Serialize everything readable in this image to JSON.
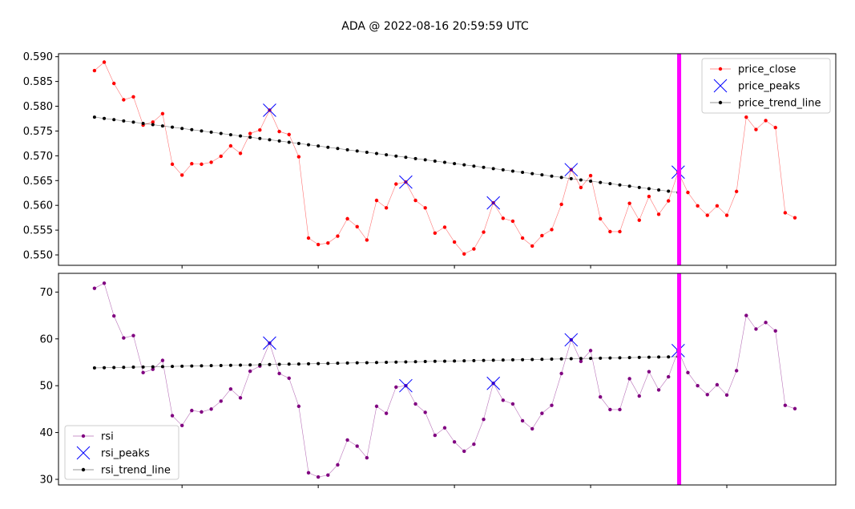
{
  "figure": {
    "title": "ADA @ 2022-08-16 20:59:59 UTC"
  },
  "colors": {
    "price_close": "#ff0000",
    "price_peaks": "#0000ff",
    "trend_line": "#000000",
    "rsi": "#800080",
    "rsi_peaks": "#0000ff",
    "vline": "#ff00ff"
  },
  "chart_data": [
    {
      "type": "line",
      "name": "price-panel",
      "x": [
        0,
        1,
        2,
        3,
        4,
        5,
        6,
        7,
        8,
        9,
        10,
        11,
        12,
        13,
        14,
        15,
        16,
        17,
        18,
        19,
        20,
        21,
        22,
        23,
        24,
        25,
        26,
        27,
        28,
        29,
        30,
        31,
        32,
        33,
        34,
        35,
        36,
        37,
        38,
        39,
        40,
        41,
        42,
        43,
        44,
        45,
        46,
        47,
        48,
        49,
        50,
        51,
        52,
        53,
        54,
        55,
        56,
        57,
        58,
        59,
        60,
        61,
        62,
        63,
        64,
        65,
        66,
        67,
        68,
        69,
        70,
        71,
        72
      ],
      "xlim": [
        -3.7,
        76.2
      ],
      "ylim": [
        0.5479,
        0.5906
      ],
      "yticks": [
        "0.550",
        "0.555",
        "0.560",
        "0.565",
        "0.570",
        "0.575",
        "0.580",
        "0.585",
        "0.590"
      ],
      "ytick_values": [
        0.55,
        0.555,
        0.56,
        0.565,
        0.57,
        0.575,
        0.58,
        0.585,
        0.59
      ],
      "xticks": [
        9,
        23,
        37,
        51,
        65
      ],
      "legend": {
        "placement": "top-right",
        "entries": [
          "price_close",
          "price_peaks",
          "price_trend_line"
        ]
      },
      "series": [
        {
          "name": "price_close",
          "style": "line-dots",
          "values": [
            0.5872,
            0.5889,
            0.5846,
            0.5813,
            0.5819,
            0.5762,
            0.5768,
            0.5785,
            0.5683,
            0.5661,
            0.5684,
            0.5683,
            0.5687,
            0.5699,
            0.572,
            0.5705,
            0.5745,
            0.5752,
            0.5792,
            0.5749,
            0.5743,
            0.5698,
            0.5534,
            0.5521,
            0.5524,
            0.5538,
            0.5573,
            0.5557,
            0.553,
            0.561,
            0.5595,
            0.5643,
            0.5647,
            0.561,
            0.5595,
            0.5544,
            0.5556,
            0.5526,
            0.5502,
            0.5512,
            0.5546,
            0.5605,
            0.5574,
            0.5568,
            0.5534,
            0.5518,
            0.5539,
            0.5551,
            0.5602,
            0.5672,
            0.5636,
            0.566,
            0.5573,
            0.5547,
            0.5547,
            0.5604,
            0.557,
            0.5618,
            0.5582,
            0.5609,
            0.5667,
            0.5626,
            0.5599,
            0.558,
            0.5599,
            0.558,
            0.5628,
            0.5778,
            0.5753,
            0.5771,
            0.5757,
            0.5585,
            0.5575
          ]
        },
        {
          "name": "price_peaks",
          "style": "x-markers",
          "points": [
            [
              18,
              0.5792
            ],
            [
              32,
              0.5647
            ],
            [
              41,
              0.5605
            ],
            [
              49,
              0.5672
            ],
            [
              60,
              0.5667
            ]
          ]
        },
        {
          "name": "price_trend_line",
          "style": "line-dots",
          "line": {
            "x_start": 0,
            "x_end": 60,
            "y_start": 0.5778,
            "y_end": 0.5626
          }
        }
      ],
      "vline_x": 60.1
    },
    {
      "type": "line",
      "name": "rsi-panel",
      "x": [
        0,
        1,
        2,
        3,
        4,
        5,
        6,
        7,
        8,
        9,
        10,
        11,
        12,
        13,
        14,
        15,
        16,
        17,
        18,
        19,
        20,
        21,
        22,
        23,
        24,
        25,
        26,
        27,
        28,
        29,
        30,
        31,
        32,
        33,
        34,
        35,
        36,
        37,
        38,
        39,
        40,
        41,
        42,
        43,
        44,
        45,
        46,
        47,
        48,
        49,
        50,
        51,
        52,
        53,
        54,
        55,
        56,
        57,
        58,
        59,
        60,
        61,
        62,
        63,
        64,
        65,
        66,
        67,
        68,
        69,
        70,
        71,
        72
      ],
      "xlim": [
        -3.7,
        76.2
      ],
      "ylim": [
        28.8,
        74.0
      ],
      "yticks": [
        "30",
        "40",
        "50",
        "60",
        "70"
      ],
      "ytick_values": [
        30,
        40,
        50,
        60,
        70
      ],
      "xticks": [
        9,
        23,
        37,
        51,
        65
      ],
      "legend": {
        "placement": "bottom-left",
        "entries": [
          "rsi",
          "rsi_peaks",
          "rsi_trend_line"
        ]
      },
      "series": [
        {
          "name": "rsi",
          "style": "line-dots",
          "values": [
            70.8,
            71.9,
            64.9,
            60.2,
            60.7,
            52.8,
            53.5,
            55.4,
            43.6,
            41.5,
            44.7,
            44.4,
            45.0,
            46.7,
            49.3,
            47.4,
            53.1,
            54.2,
            59.1,
            52.6,
            51.6,
            45.6,
            31.4,
            30.5,
            30.9,
            33.1,
            38.4,
            37.1,
            34.6,
            45.6,
            44.1,
            49.7,
            50.0,
            46.1,
            44.3,
            39.4,
            41.0,
            38.0,
            36.0,
            37.5,
            42.8,
            50.5,
            46.9,
            46.1,
            42.5,
            40.8,
            44.1,
            45.8,
            52.6,
            59.8,
            55.2,
            57.5,
            47.6,
            44.9,
            44.9,
            51.5,
            47.8,
            53.0,
            49.1,
            51.9,
            57.5,
            52.8,
            50.0,
            48.1,
            50.2,
            48.0,
            53.2,
            65.0,
            62.1,
            63.5,
            61.7,
            45.8,
            45.1
          ]
        },
        {
          "name": "rsi_peaks",
          "style": "x-markers",
          "points": [
            [
              18,
              59.1
            ],
            [
              32,
              50.0
            ],
            [
              41,
              50.5
            ],
            [
              49,
              59.8
            ],
            [
              60,
              57.5
            ]
          ]
        },
        {
          "name": "rsi_trend_line",
          "style": "line-dots",
          "line": {
            "x_start": 0,
            "x_end": 60,
            "y_start": 53.8,
            "y_end": 56.2
          }
        }
      ],
      "vline_x": 60.1
    }
  ]
}
